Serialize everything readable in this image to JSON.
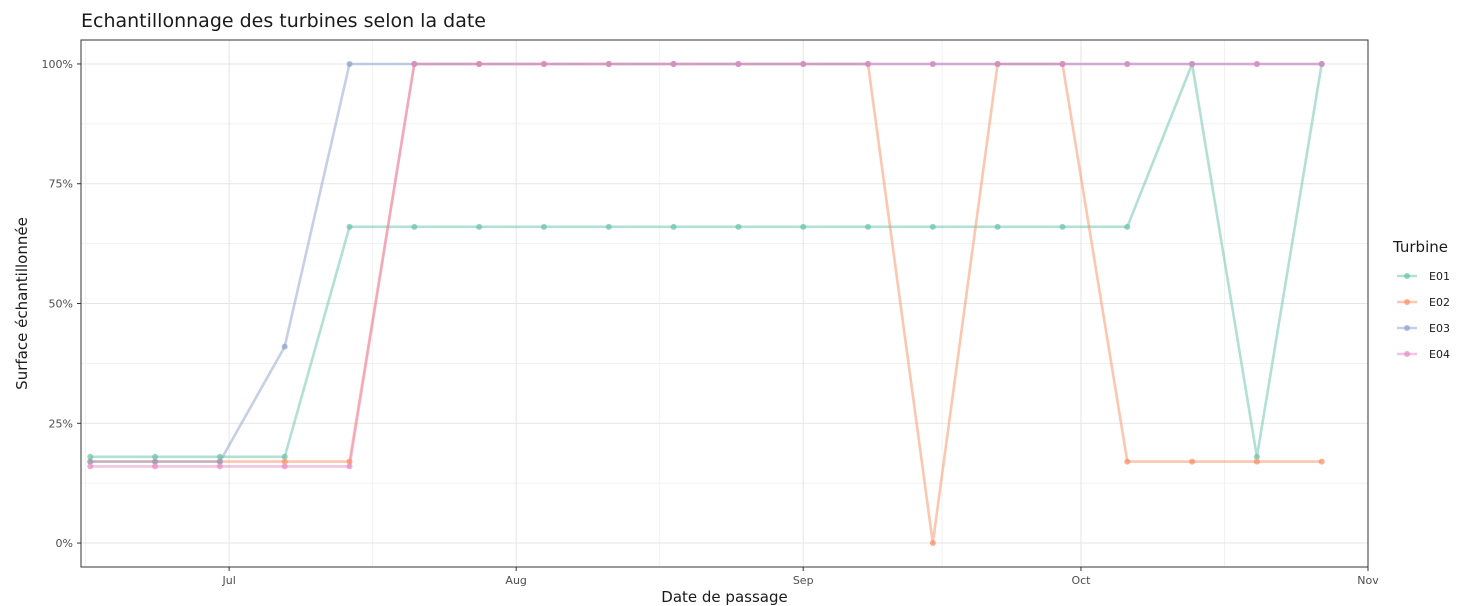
{
  "chart_data": {
    "type": "line",
    "title": "Echantillonnage des turbines selon la date",
    "xlabel": "Date de passage",
    "ylabel": "Surface échantillonnée",
    "x_ticks": [
      {
        "label": "Jul",
        "day": 182
      },
      {
        "label": "Aug",
        "day": 213
      },
      {
        "label": "Sep",
        "day": 244
      },
      {
        "label": "Oct",
        "day": 274
      },
      {
        "label": "Nov",
        "day": 305
      }
    ],
    "y_ticks": [
      {
        "label": "0%",
        "value": 0
      },
      {
        "label": "25%",
        "value": 0.25
      },
      {
        "label": "50%",
        "value": 0.5
      },
      {
        "label": "75%",
        "value": 0.75
      },
      {
        "label": "100%",
        "value": 1
      }
    ],
    "xlim": [
      "2023-06-15",
      "2023-11-01"
    ],
    "ylim": [
      -0.05,
      1.05
    ],
    "x": [
      "2023-06-16",
      "2023-06-23",
      "2023-06-30",
      "2023-07-07",
      "2023-07-14",
      "2023-07-21",
      "2023-07-28",
      "2023-08-04",
      "2023-08-11",
      "2023-08-18",
      "2023-08-25",
      "2023-09-01",
      "2023-09-08",
      "2023-09-15",
      "2023-09-22",
      "2023-09-29",
      "2023-10-06",
      "2023-10-13",
      "2023-10-20",
      "2023-10-27"
    ],
    "legend": {
      "title": "Turbine",
      "position": "right"
    },
    "grid": true,
    "series": [
      {
        "name": "E01",
        "color": "#66c2a5",
        "values": [
          0.18,
          0.18,
          0.18,
          0.18,
          0.66,
          0.66,
          0.66,
          0.66,
          0.66,
          0.66,
          0.66,
          0.66,
          0.66,
          0.66,
          0.66,
          0.66,
          0.66,
          1.0,
          0.18,
          1.0
        ]
      },
      {
        "name": "E02",
        "color": "#fc8d62",
        "values": [
          0.17,
          0.17,
          0.17,
          0.17,
          0.17,
          1.0,
          1.0,
          1.0,
          1.0,
          1.0,
          1.0,
          1.0,
          1.0,
          0.0,
          1.0,
          1.0,
          0.17,
          0.17,
          0.17,
          0.17
        ]
      },
      {
        "name": "E03",
        "color": "#8da0cb",
        "values": [
          0.17,
          0.17,
          0.17,
          0.41,
          1.0,
          1.0,
          1.0,
          1.0,
          1.0,
          1.0,
          1.0,
          1.0,
          1.0,
          1.0,
          1.0,
          1.0,
          1.0,
          1.0,
          1.0,
          1.0
        ]
      },
      {
        "name": "E04",
        "color": "#e78ac3",
        "values": [
          0.16,
          0.16,
          0.16,
          0.16,
          0.16,
          1.0,
          1.0,
          1.0,
          1.0,
          1.0,
          1.0,
          1.0,
          1.0,
          1.0,
          1.0,
          1.0,
          1.0,
          1.0,
          1.0,
          1.0
        ]
      }
    ]
  }
}
